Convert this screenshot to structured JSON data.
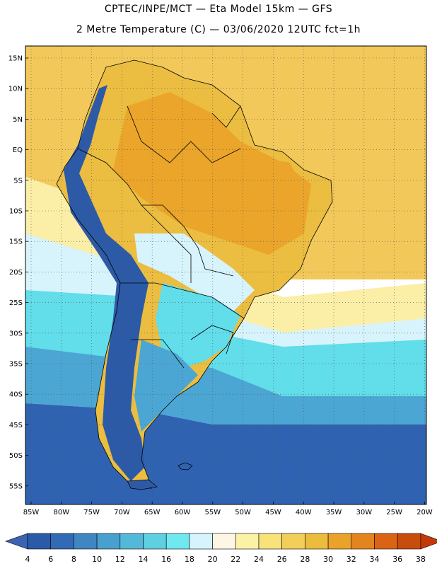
{
  "header": {
    "line1": "CPTEC/INPE/MCT —  Eta Model 15km — GFS",
    "line2": "2 Metre Temperature (C) — 03/06/2020 12UTC fct=1h"
  },
  "axes": {
    "lat_labels": [
      "15N",
      "10N",
      "5N",
      "EQ",
      "5S",
      "10S",
      "15S",
      "20S",
      "25S",
      "30S",
      "35S",
      "40S",
      "45S",
      "50S",
      "55S"
    ],
    "lon_labels": [
      "85W",
      "80W",
      "75W",
      "70W",
      "65W",
      "60W",
      "55W",
      "50W",
      "45W",
      "40W",
      "35W",
      "30W",
      "25W",
      "20W"
    ]
  },
  "colorbar": {
    "labels": [
      "4",
      "6",
      "8",
      "10",
      "12",
      "14",
      "16",
      "18",
      "20",
      "22",
      "24",
      "26",
      "28",
      "30",
      "32",
      "34",
      "36",
      "38"
    ],
    "colors": [
      "#2b5aa8",
      "#326ab5",
      "#3f86c3",
      "#48a0cf",
      "#54b8d8",
      "#5fd0e2",
      "#6fe8ef",
      "#d6f4fb",
      "#fdf6e4",
      "#fcf2a6",
      "#f8e27a",
      "#f2cf58",
      "#ecbc3e",
      "#eba228",
      "#e4841c",
      "#db6414",
      "#c84c0c"
    ],
    "under_color": "#3c63b3",
    "over_color": "#c23a08"
  },
  "map_colors": {
    "ocean_south": "#2f63b1",
    "ocean_mid": "#4ba6d3",
    "ocean_cyan": "#62ddea",
    "ocean_light": "#d7f3fb",
    "ocean_warm": "#fbeea7",
    "ocean_tropic": "#f2c85a",
    "land_tropic": "#ebbd40",
    "land_hot": "#eaa52a",
    "andes": "#2d5aa6",
    "border_line": "#000000"
  }
}
